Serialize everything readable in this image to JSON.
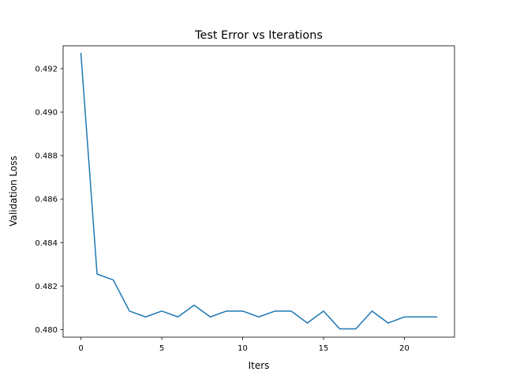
{
  "chart_data": {
    "type": "line",
    "title": "Test Error vs Iterations",
    "xlabel": "Iters",
    "ylabel": "Validation Loss",
    "xlim": [
      -1.1,
      23.1
    ],
    "ylim": [
      0.47965,
      0.49305
    ],
    "xticks": [
      0,
      5,
      10,
      15,
      20
    ],
    "yticks": [
      0.48,
      0.482,
      0.484,
      0.486,
      0.488,
      0.49,
      0.492
    ],
    "ytick_labels": [
      "0.480",
      "0.482",
      "0.484",
      "0.486",
      "0.488",
      "0.490",
      "0.492"
    ],
    "grid": false,
    "series": [
      {
        "color": "#1f77b4",
        "x": [
          0,
          1,
          2,
          3,
          4,
          5,
          6,
          7,
          8,
          9,
          10,
          11,
          12,
          13,
          14,
          15,
          16,
          17,
          18,
          19,
          20,
          21,
          22
        ],
        "y": [
          0.4927,
          0.48255,
          0.48228,
          0.48085,
          0.48058,
          0.48085,
          0.48058,
          0.48112,
          0.48058,
          0.48085,
          0.48085,
          0.48058,
          0.48085,
          0.48085,
          0.4803,
          0.48085,
          0.48003,
          0.48003,
          0.48085,
          0.4803,
          0.48058,
          0.48058,
          0.48058
        ]
      }
    ]
  }
}
